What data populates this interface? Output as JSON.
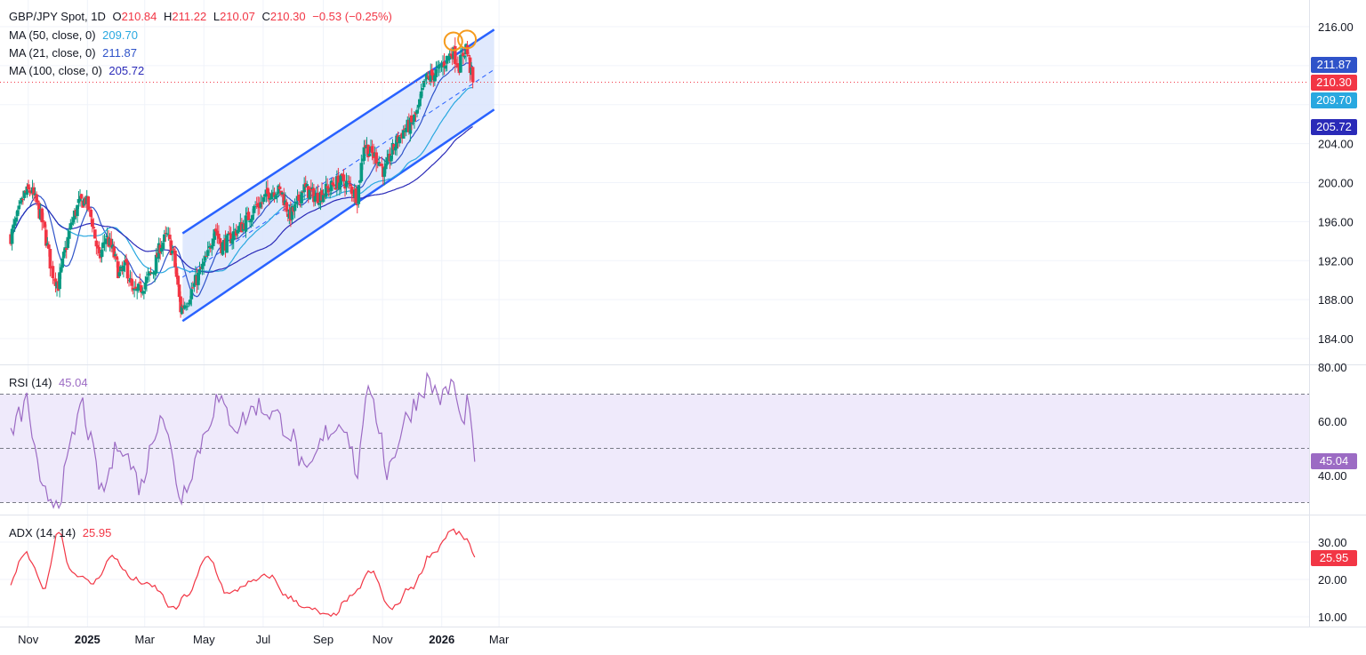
{
  "legend": {
    "main": {
      "symbol": "GBP/JPY Spot, 1D",
      "o_label": "O",
      "o_value": "210.84",
      "h_label": "H",
      "h_value": "211.22",
      "l_label": "L",
      "l_value": "210.07",
      "c_label": "C",
      "c_value": "210.30",
      "change": "−0.53 (−0.25%)"
    },
    "ma50": {
      "label": "MA (50, close, 0)",
      "value": "209.70"
    },
    "ma21": {
      "label": "MA (21, close, 0)",
      "value": "211.87"
    },
    "ma100": {
      "label": "MA (100, close, 0)",
      "value": "205.72"
    },
    "rsi": {
      "label": "RSI (14)",
      "value": "45.04"
    },
    "adx": {
      "label": "ADX (14, 14)",
      "value": "25.95"
    }
  },
  "colors": {
    "up": "#089981",
    "down": "#f23645",
    "ma50": "#29a8e0",
    "ma21": "#2f53c9",
    "ma100": "#2a2ab8",
    "channel": "#2962ff",
    "channel_fill": "#dbe5fd",
    "rsi": "#9c6bc4",
    "rsi_fill": "#efeafb",
    "adx": "#f23645",
    "peak_marker": "#f59b1e"
  },
  "chart_data": [
    {
      "type": "candlestick",
      "title": "GBP/JPY Spot, 1D",
      "x_ticks": [
        "Nov",
        "2025",
        "Mar",
        "May",
        "Jul",
        "Sep",
        "Nov",
        "2026",
        "Mar"
      ],
      "y_ticks": [
        184,
        188,
        192,
        196,
        200,
        204,
        216
      ],
      "y_tick_labels": [
        "184.00",
        "188.00",
        "192.00",
        "196.00",
        "200.00",
        "204.00",
        "216.00"
      ],
      "ylim": [
        182,
        217.5
      ],
      "last_close": 210.3,
      "last_close_label": "210.30",
      "close_path": [
        [
          "2024-10-14",
          194.5
        ],
        [
          "2024-10-21",
          196.5
        ],
        [
          "2024-10-28",
          198.8
        ],
        [
          "2024-11-04",
          199.2
        ],
        [
          "2024-11-11",
          197.5
        ],
        [
          "2024-11-18",
          195.0
        ],
        [
          "2024-11-25",
          191.0
        ],
        [
          "2024-12-02",
          189.5
        ],
        [
          "2024-12-09",
          193.0
        ],
        [
          "2024-12-16",
          196.0
        ],
        [
          "2024-12-23",
          197.8
        ],
        [
          "2024-12-30",
          198.3
        ],
        [
          "2025-01-06",
          196.0
        ],
        [
          "2025-01-13",
          192.0
        ],
        [
          "2025-01-20",
          194.5
        ],
        [
          "2025-01-27",
          193.0
        ],
        [
          "2025-02-03",
          190.5
        ],
        [
          "2025-02-10",
          191.5
        ],
        [
          "2025-02-17",
          188.5
        ],
        [
          "2025-02-24",
          189.0
        ],
        [
          "2025-03-03",
          190.0
        ],
        [
          "2025-03-10",
          191.0
        ],
        [
          "2025-03-17",
          193.5
        ],
        [
          "2025-03-24",
          194.5
        ],
        [
          "2025-03-31",
          192.5
        ],
        [
          "2025-04-07",
          187.0
        ],
        [
          "2025-04-14",
          188.0
        ],
        [
          "2025-04-21",
          189.5
        ],
        [
          "2025-04-28",
          191.0
        ],
        [
          "2025-05-05",
          192.5
        ],
        [
          "2025-05-12",
          195.5
        ],
        [
          "2025-05-19",
          193.5
        ],
        [
          "2025-05-26",
          194.0
        ],
        [
          "2025-06-02",
          195.0
        ],
        [
          "2025-06-09",
          195.5
        ],
        [
          "2025-06-16",
          196.5
        ],
        [
          "2025-06-23",
          197.5
        ],
        [
          "2025-06-30",
          198.0
        ],
        [
          "2025-07-07",
          199.0
        ],
        [
          "2025-07-14",
          199.3
        ],
        [
          "2025-07-21",
          198.8
        ],
        [
          "2025-07-28",
          196.5
        ],
        [
          "2025-08-04",
          197.5
        ],
        [
          "2025-08-11",
          199.5
        ],
        [
          "2025-08-18",
          199.0
        ],
        [
          "2025-08-25",
          198.5
        ],
        [
          "2025-09-01",
          199.0
        ],
        [
          "2025-09-08",
          199.5
        ],
        [
          "2025-09-15",
          200.0
        ],
        [
          "2025-09-22",
          200.2
        ],
        [
          "2025-09-29",
          199.5
        ],
        [
          "2025-10-06",
          198.5
        ],
        [
          "2025-10-13",
          204.0
        ],
        [
          "2025-10-20",
          203.0
        ],
        [
          "2025-10-27",
          202.5
        ],
        [
          "2025-11-03",
          201.0
        ],
        [
          "2025-11-10",
          203.0
        ],
        [
          "2025-11-17",
          204.5
        ],
        [
          "2025-11-24",
          205.5
        ],
        [
          "2025-12-01",
          206.0
        ],
        [
          "2025-12-08",
          207.5
        ],
        [
          "2025-12-15",
          210.5
        ],
        [
          "2025-12-22",
          211.0
        ],
        [
          "2025-12-29",
          211.5
        ],
        [
          "2026-01-05",
          212.5
        ],
        [
          "2026-01-12",
          213.5
        ],
        [
          "2026-01-19",
          212.0
        ],
        [
          "2026-01-26",
          214.0
        ],
        [
          "2026-02-02",
          210.3
        ]
      ],
      "series": [
        {
          "name": "MA (21, close, 0)",
          "last_value": 211.87,
          "last_label": "211.87"
        },
        {
          "name": "MA (50, close, 0)",
          "last_value": 209.7,
          "last_label": "209.70"
        },
        {
          "name": "MA (100, close, 0)",
          "last_value": 205.72,
          "last_label": "205.72"
        }
      ],
      "annotations": {
        "channel_upper": [
          [
            "2025-04-09",
            194.8
          ],
          [
            "2026-02-24",
            215.7
          ]
        ],
        "channel_lower": [
          [
            "2025-04-09",
            185.8
          ],
          [
            "2026-02-24",
            207.5
          ]
        ],
        "channel_mid": [
          [
            "2025-04-09",
            190.3
          ],
          [
            "2026-02-24",
            211.6
          ]
        ],
        "peak_circles": [
          [
            "2026-01-13",
            214.4
          ],
          [
            "2026-01-27",
            214.6
          ]
        ]
      }
    },
    {
      "type": "line",
      "title": "RSI (14)",
      "y_ticks": [
        40,
        60,
        80
      ],
      "y_tick_labels": [
        "40.00",
        "60.00",
        "80.00"
      ],
      "ylim": [
        25,
        80
      ],
      "bands": [
        30,
        50,
        70
      ],
      "last_value": 45.04,
      "last_label": "45.04",
      "x": [
        "2024-10-14",
        "2024-10-31",
        "2024-11-14",
        "2024-12-03",
        "2024-12-26",
        "2025-01-16",
        "2025-02-03",
        "2025-02-25",
        "2025-03-18",
        "2025-04-07",
        "2025-04-28",
        "2025-05-14",
        "2025-06-04",
        "2025-06-24",
        "2025-07-15",
        "2025-08-01",
        "2025-08-14",
        "2025-09-04",
        "2025-09-24",
        "2025-10-07",
        "2025-10-14",
        "2025-10-31",
        "2025-11-05",
        "2025-11-24",
        "2025-12-17",
        "2026-01-02",
        "2026-01-13",
        "2026-01-21",
        "2026-01-27",
        "2026-02-04"
      ],
      "values": [
        55,
        68,
        33,
        31,
        68,
        32,
        54,
        35,
        66,
        31,
        52,
        68,
        58,
        66,
        62,
        54,
        38,
        56,
        60,
        38,
        72,
        56,
        40,
        60,
        75,
        68,
        75,
        57,
        68,
        45.04
      ]
    },
    {
      "type": "line",
      "title": "ADX (14, 14)",
      "y_ticks": [
        10,
        20,
        30
      ],
      "y_tick_labels": [
        "10.00",
        "20.00",
        "30.00"
      ],
      "ylim": [
        6,
        36
      ],
      "last_value": 25.95,
      "last_label": "25.95",
      "x": [
        "2024-10-14",
        "2024-10-28",
        "2024-11-18",
        "2024-12-02",
        "2024-12-16",
        "2025-01-06",
        "2025-01-27",
        "2025-02-17",
        "2025-03-10",
        "2025-03-31",
        "2025-04-14",
        "2025-05-05",
        "2025-05-26",
        "2025-06-16",
        "2025-07-07",
        "2025-07-28",
        "2025-08-18",
        "2025-09-08",
        "2025-09-29",
        "2025-10-20",
        "2025-11-10",
        "2025-12-01",
        "2025-12-22",
        "2026-01-12",
        "2026-01-26",
        "2026-02-04"
      ],
      "values": [
        19,
        27,
        18,
        33,
        22,
        19,
        26,
        20,
        18,
        12,
        16,
        26,
        16,
        19,
        21,
        15,
        12,
        10,
        15,
        22,
        12,
        18,
        27,
        33,
        31,
        25.95
      ]
    }
  ]
}
